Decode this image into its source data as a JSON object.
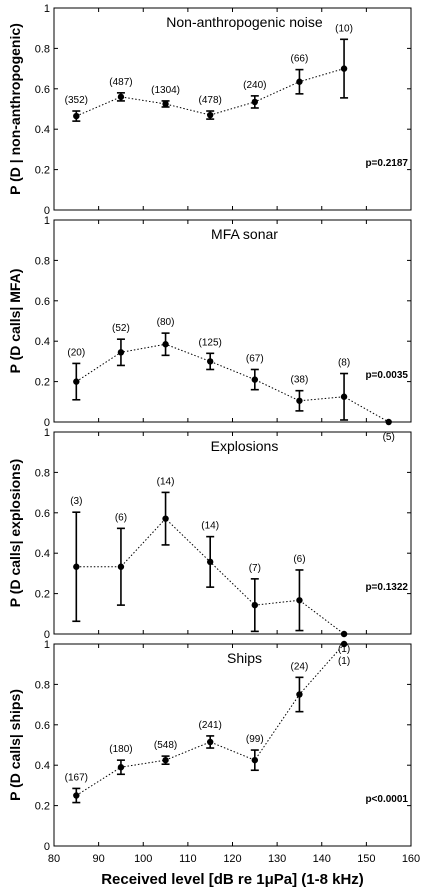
{
  "chart_data": [
    {
      "type": "line",
      "title": "Non-anthropogenic noise",
      "ylabel": "P (D | non-anthropogenic)",
      "xlim": [
        80,
        160
      ],
      "ylim": [
        0,
        1
      ],
      "yticks": [
        "0",
        "0.2",
        "0.4",
        "0.6",
        "0.8",
        "1"
      ],
      "p_value": "p=0.2187",
      "series": [
        {
          "x": [
            85,
            95,
            105,
            115,
            125,
            135,
            145
          ],
          "y": [
            0.465,
            0.56,
            0.525,
            0.47,
            0.535,
            0.635,
            0.7
          ],
          "err": [
            0.025,
            0.02,
            0.015,
            0.02,
            0.03,
            0.06,
            0.145
          ],
          "counts": [
            "(352)",
            "(487)",
            "(1304)",
            "(478)",
            "(240)",
            "(66)",
            "(10)"
          ]
        }
      ]
    },
    {
      "type": "line",
      "title": "MFA sonar",
      "ylabel": "P (D calls| MFA)",
      "xlim": [
        80,
        160
      ],
      "ylim": [
        0,
        1
      ],
      "yticks": [
        "0",
        "0.2",
        "0.4",
        "0.6",
        "0.8",
        "1"
      ],
      "p_value": "p=0.0035",
      "series": [
        {
          "x": [
            85,
            95,
            105,
            115,
            125,
            135,
            145,
            155
          ],
          "y": [
            0.2,
            0.345,
            0.385,
            0.3,
            0.21,
            0.105,
            0.125,
            0.0
          ],
          "err": [
            0.09,
            0.065,
            0.055,
            0.04,
            0.05,
            0.05,
            0.115,
            0.0
          ],
          "counts": [
            "(20)",
            "(52)",
            "(80)",
            "(125)",
            "(67)",
            "(38)",
            "(8)",
            "(5)"
          ]
        }
      ]
    },
    {
      "type": "line",
      "title": "Explosions",
      "ylabel": "P (D calls| explosions)",
      "xlim": [
        80,
        160
      ],
      "ylim": [
        0,
        1
      ],
      "yticks": [
        "0",
        "0.2",
        "0.4",
        "0.6",
        "0.8",
        "1"
      ],
      "p_value": "p=0.1322",
      "series": [
        {
          "x": [
            85,
            95,
            105,
            115,
            125,
            135,
            145
          ],
          "y": [
            0.333,
            0.333,
            0.571,
            0.357,
            0.143,
            0.167,
            0.0
          ],
          "err": [
            0.27,
            0.19,
            0.13,
            0.125,
            0.13,
            0.15,
            0.0
          ],
          "counts": [
            "(3)",
            "(6)",
            "(14)",
            "(14)",
            "(7)",
            "(6)",
            "(1)"
          ]
        }
      ]
    },
    {
      "type": "line",
      "title": "Ships",
      "ylabel": "P (D calls| ships)",
      "xlabel": "Received level [dB re 1μPa] (1-8 kHz)",
      "xlim": [
        80,
        160
      ],
      "ylim": [
        0,
        1
      ],
      "xticks": [
        "80",
        "90",
        "100",
        "110",
        "120",
        "130",
        "140",
        "150",
        "160"
      ],
      "yticks": [
        "0",
        "0.2",
        "0.4",
        "0.6",
        "0.8",
        "1"
      ],
      "p_value": "p<0.0001",
      "series": [
        {
          "x": [
            85,
            95,
            105,
            115,
            125,
            135,
            145
          ],
          "y": [
            0.25,
            0.39,
            0.425,
            0.515,
            0.425,
            0.75,
            1.0
          ],
          "err": [
            0.035,
            0.035,
            0.02,
            0.03,
            0.05,
            0.085,
            0.0
          ],
          "counts": [
            "(167)",
            "(180)",
            "(548)",
            "(241)",
            "(99)",
            "(24)",
            "(1)"
          ]
        }
      ]
    }
  ]
}
